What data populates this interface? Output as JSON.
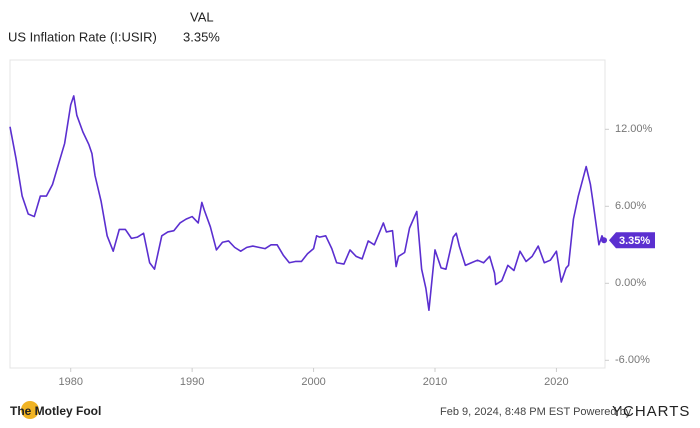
{
  "chart_data": {
    "type": "line",
    "legend": {
      "header": "VAL",
      "value_label": "3.35%"
    },
    "x": [
      1975.0,
      1975.5,
      1976.0,
      1976.5,
      1977.0,
      1977.5,
      1978.0,
      1978.5,
      1979.0,
      1979.5,
      1980.0,
      1980.25,
      1980.5,
      1981.0,
      1981.5,
      1981.75,
      1982.0,
      1982.5,
      1983.0,
      1983.5,
      1984.0,
      1984.5,
      1985.0,
      1985.5,
      1986.0,
      1986.5,
      1986.9,
      1987.5,
      1988.0,
      1988.5,
      1989.0,
      1989.5,
      1990.0,
      1990.5,
      1990.8,
      1991.0,
      1991.5,
      1992.0,
      1992.5,
      1993.0,
      1993.5,
      1994.0,
      1994.5,
      1995.0,
      1995.5,
      1996.0,
      1996.5,
      1997.0,
      1997.5,
      1998.0,
      1998.5,
      1999.0,
      1999.5,
      2000.0,
      2000.25,
      2000.5,
      2001.0,
      2001.5,
      2001.9,
      2002.5,
      2003.0,
      2003.5,
      2004.0,
      2004.5,
      2005.0,
      2005.75,
      2006.0,
      2006.5,
      2006.8,
      2007.0,
      2007.5,
      2007.9,
      2008.5,
      2008.9,
      2009.25,
      2009.5,
      2010.0,
      2010.5,
      2010.9,
      2011.5,
      2011.75,
      2012.0,
      2012.5,
      2013.0,
      2013.5,
      2014.0,
      2014.5,
      2014.9,
      2015.0,
      2015.5,
      2016.0,
      2016.5,
      2017.0,
      2017.5,
      2018.0,
      2018.5,
      2019.0,
      2019.5,
      2020.0,
      2020.4,
      2020.8,
      2021.0,
      2021.4,
      2021.8,
      2022.0,
      2022.45,
      2022.8,
      2023.0,
      2023.5,
      2023.75,
      2023.92
    ],
    "series": [
      {
        "name": "US Inflation Rate (I:USIR)",
        "color": "#5b2fd0",
        "values": [
          12.2,
          9.7,
          6.8,
          5.4,
          5.2,
          6.8,
          6.8,
          7.7,
          9.3,
          10.9,
          13.9,
          14.6,
          13.1,
          11.8,
          10.8,
          10.1,
          8.4,
          6.4,
          3.7,
          2.5,
          4.2,
          4.2,
          3.5,
          3.6,
          3.9,
          1.6,
          1.1,
          3.7,
          4.0,
          4.1,
          4.7,
          5.0,
          5.2,
          4.7,
          6.3,
          5.7,
          4.4,
          2.6,
          3.2,
          3.3,
          2.8,
          2.5,
          2.8,
          2.9,
          2.8,
          2.7,
          3.0,
          3.0,
          2.2,
          1.6,
          1.7,
          1.7,
          2.3,
          2.7,
          3.7,
          3.6,
          3.7,
          2.7,
          1.6,
          1.5,
          2.6,
          2.1,
          1.9,
          3.3,
          3.0,
          4.7,
          4.0,
          4.1,
          1.3,
          2.1,
          2.4,
          4.3,
          5.6,
          1.1,
          -0.4,
          -2.1,
          2.6,
          1.2,
          1.1,
          3.6,
          3.9,
          2.9,
          1.4,
          1.6,
          1.8,
          1.6,
          2.1,
          0.8,
          -0.1,
          0.2,
          1.4,
          1.0,
          2.5,
          1.7,
          2.1,
          2.9,
          1.6,
          1.8,
          2.5,
          0.1,
          1.2,
          1.4,
          5.0,
          6.8,
          7.5,
          9.1,
          7.7,
          6.4,
          3.0,
          3.7,
          3.35
        ]
      }
    ],
    "xlim": [
      1975,
      2024
    ],
    "xticks": [
      1980,
      1990,
      2000,
      2010,
      2020
    ],
    "ylim": [
      -6.6,
      17.4
    ],
    "yticks": [
      {
        "value": 12,
        "label": "12.00%"
      },
      {
        "value": 6,
        "label": "6.00%"
      },
      {
        "value": 0,
        "label": "0.00%"
      },
      {
        "value": -6,
        "label": "-6.00%"
      }
    ]
  },
  "footer": {
    "brand": "The Motley Fool",
    "timestamp": "Feb 9, 2024, 8:48 PM EST  Powered by",
    "provider": "YCHARTS"
  }
}
